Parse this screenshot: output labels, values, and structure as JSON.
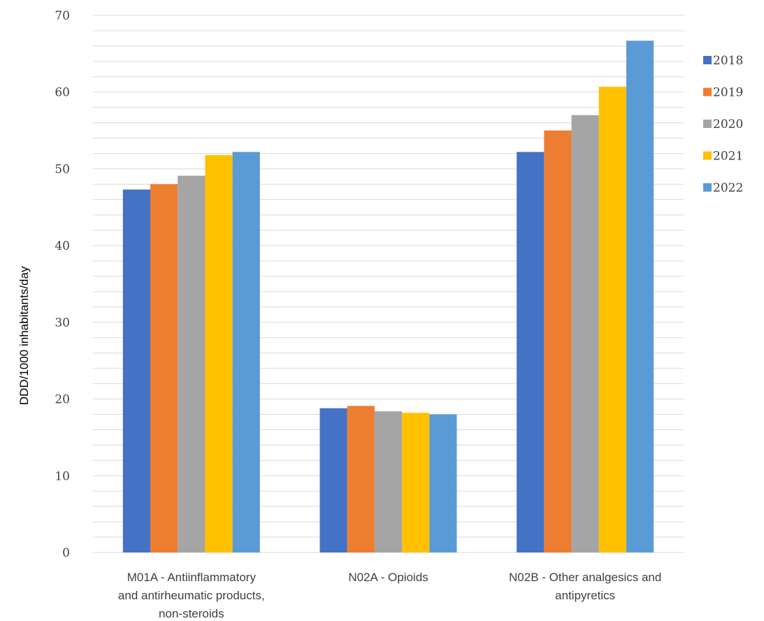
{
  "chart_data": {
    "type": "bar",
    "title": "",
    "xlabel": "",
    "ylabel": "DDD/1000 inhabitants/day",
    "ylim": [
      0,
      70
    ],
    "yticks": [
      0,
      10,
      20,
      30,
      40,
      50,
      60,
      70
    ],
    "minor_grid_step": 2,
    "grid": true,
    "legend_position": "right",
    "categories": [
      [
        "M01A - Antiinflammatory",
        "and antirheumatic products,",
        "non-steroids"
      ],
      [
        "N02A - Opioids"
      ],
      [
        "N02B - Other analgesics and",
        "antipyretics"
      ]
    ],
    "series": [
      {
        "name": "2018",
        "color": "#4472C4",
        "values": [
          47.3,
          18.8,
          52.2
        ]
      },
      {
        "name": "2019",
        "color": "#ED7D31",
        "values": [
          48.0,
          19.1,
          55.0
        ]
      },
      {
        "name": "2020",
        "color": "#A5A5A5",
        "values": [
          49.1,
          18.4,
          57.0
        ]
      },
      {
        "name": "2021",
        "color": "#FFC000",
        "values": [
          51.8,
          18.2,
          60.7
        ]
      },
      {
        "name": "2022",
        "color": "#5B9BD5",
        "values": [
          52.2,
          18.0,
          66.7
        ]
      }
    ]
  }
}
